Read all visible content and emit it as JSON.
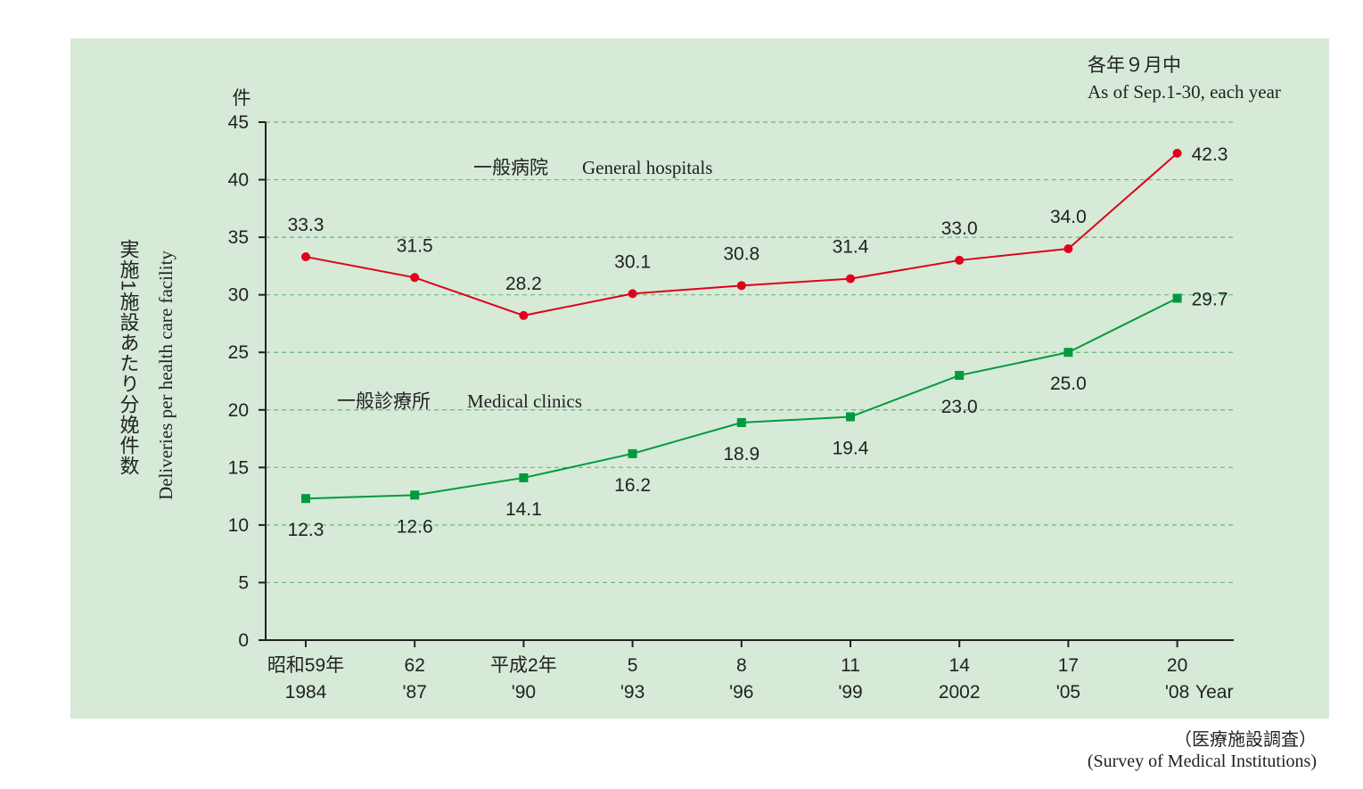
{
  "chart_data": {
    "type": "line",
    "y_unit_label": "件",
    "ylabel_ja": "実施1施設あたり分娩件数",
    "ylabel_en": "Deliveries per health care facility",
    "ylim": [
      0,
      45
    ],
    "yticks": [
      0,
      5,
      10,
      15,
      20,
      25,
      30,
      35,
      40,
      45
    ],
    "note_ja": "各年９月中",
    "note_en": "As of Sep.1-30, each year",
    "categories": [
      {
        "top": "昭和59年",
        "bottom": "1984"
      },
      {
        "top": "62",
        "bottom": "'87"
      },
      {
        "top": "平成2年",
        "bottom": "'90"
      },
      {
        "top": "5",
        "bottom": "'93"
      },
      {
        "top": "8",
        "bottom": "'96"
      },
      {
        "top": "11",
        "bottom": "'99"
      },
      {
        "top": "14",
        "bottom": "2002"
      },
      {
        "top": "17",
        "bottom": "'05"
      },
      {
        "top": "20",
        "bottom": "'08"
      }
    ],
    "x_unit_label": "Year",
    "grid": true,
    "series": [
      {
        "name_ja": "一般病院",
        "name_en": "General hospitals",
        "color": "#e0001b",
        "marker": "circle",
        "values": [
          33.3,
          31.5,
          28.2,
          30.1,
          30.8,
          31.4,
          33.0,
          34.0,
          42.3
        ],
        "labels": [
          "33.3",
          "31.5",
          "28.2",
          "30.1",
          "30.8",
          "31.4",
          "33.0",
          "34.0",
          "42.3"
        ]
      },
      {
        "name_ja": "一般診療所",
        "name_en": "Medical clinics",
        "color": "#009a3e",
        "marker": "square",
        "values": [
          12.3,
          12.6,
          14.1,
          16.2,
          18.9,
          19.4,
          23.0,
          25.0,
          29.7
        ],
        "labels": [
          "12.3",
          "12.6",
          "14.1",
          "16.2",
          "18.9",
          "19.4",
          "23.0",
          "25.0",
          "29.7"
        ]
      }
    ]
  },
  "source": {
    "ja": "（医療施設調査）",
    "en": "(Survey of Medical Institutions)"
  },
  "colors": {
    "panel_background": "#d6ead7",
    "gridline": "#6ab880"
  }
}
